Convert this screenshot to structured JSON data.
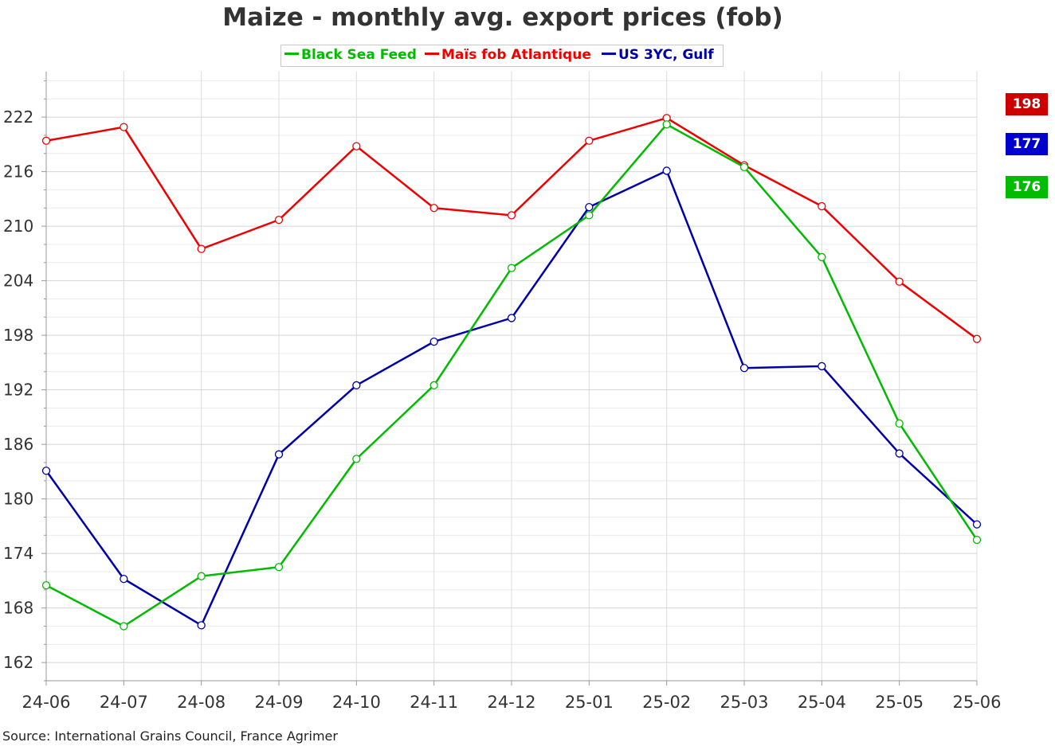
{
  "chart_data": {
    "type": "line",
    "title": "Maize - monthly avg. export prices (fob)",
    "xlabel": "",
    "ylabel": "",
    "categories": [
      "24-06",
      "24-07",
      "24-08",
      "24-09",
      "24-10",
      "24-11",
      "24-12",
      "25-01",
      "25-02",
      "25-03",
      "25-04",
      "25-05",
      "25-06"
    ],
    "ylim": [
      160,
      227
    ],
    "yticks": [
      162,
      168,
      174,
      180,
      186,
      192,
      198,
      204,
      210,
      216,
      222
    ],
    "grid": true,
    "legend_position": "top-center",
    "series": [
      {
        "name": "Black Sea Feed",
        "color": "#00bb00",
        "values": [
          170.5,
          166,
          171.5,
          172.5,
          184.4,
          192.5,
          205.4,
          211.2,
          221.2,
          216.5,
          206.6,
          188.3,
          175.5
        ]
      },
      {
        "name": "Maïs fob Atlantique",
        "color": "#ee0000",
        "values": [
          219.4,
          220.9,
          207.5,
          210.7,
          218.8,
          212,
          211.2,
          219.4,
          221.9,
          216.7,
          212.2,
          203.9,
          197.6
        ]
      },
      {
        "name": "US 3YC, Gulf",
        "color": "#0000aa",
        "values": [
          183.1,
          171.2,
          166.1,
          184.9,
          192.5,
          197.3,
          199.9,
          212.1,
          216.1,
          194.4,
          194.6,
          185,
          177.2
        ]
      }
    ],
    "end_labels": [
      {
        "text": "198",
        "color": "#cc0000"
      },
      {
        "text": "177",
        "color": "#0000cc"
      },
      {
        "text": "176",
        "color": "#00bb00"
      }
    ]
  },
  "source": "Source: International Grains Council, France Agrimer"
}
